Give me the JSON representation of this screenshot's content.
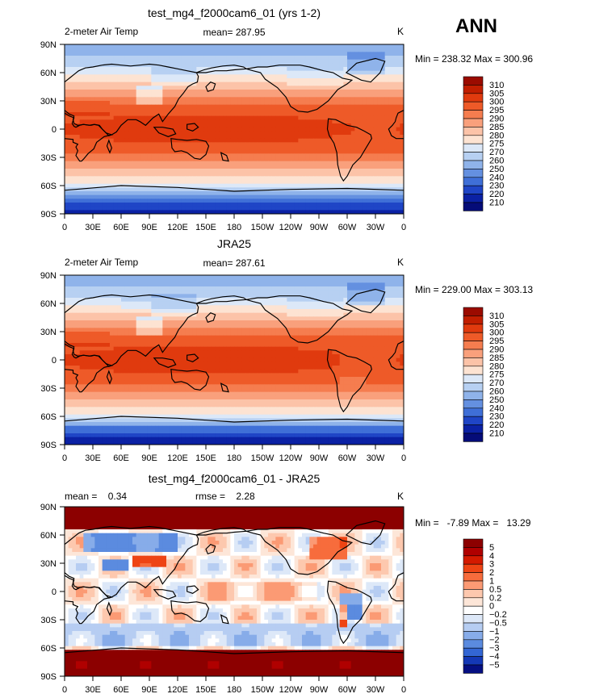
{
  "season": "ANN",
  "chart_data": [
    {
      "type": "heatmap",
      "title": "test_mg4_f2000cam6_01 (yrs 1-2)",
      "variable": "2-meter Air Temp",
      "units": "K",
      "stat_text": "mean= 287.95",
      "minmax_text": "Min = 238.32 Max = 300.96",
      "mean": 287.95,
      "min": 238.32,
      "max": 300.96,
      "x_ticks": [
        "0",
        "30E",
        "60E",
        "90E",
        "120E",
        "150E",
        "180",
        "150W",
        "120W",
        "90W",
        "60W",
        "30W",
        "0"
      ],
      "y_ticks": [
        "90N",
        "60N",
        "30N",
        "0",
        "30S",
        "60S",
        "90S"
      ],
      "colorbar_levels": [
        "310",
        "305",
        "300",
        "295",
        "290",
        "285",
        "280",
        "275",
        "270",
        "260",
        "250",
        "240",
        "230",
        "220",
        "210"
      ],
      "colorbar_colors": [
        "#9b0b00",
        "#c11e00",
        "#e03a0e",
        "#ee5a28",
        "#f57d4f",
        "#f9a07c",
        "#fcc3a8",
        "#fde3d2",
        "#dce8f8",
        "#b7d0f2",
        "#8fb3ea",
        "#6490e0",
        "#3f6fd7",
        "#1f45c6",
        "#0b21a4",
        "#050c78"
      ]
    },
    {
      "type": "heatmap",
      "title": "JRA25",
      "variable": "2-meter Air Temp",
      "units": "K",
      "stat_text": "mean= 287.61",
      "minmax_text": "Min = 229.00 Max = 303.13",
      "mean": 287.61,
      "min": 229.0,
      "max": 303.13,
      "x_ticks": [
        "0",
        "30E",
        "60E",
        "90E",
        "120E",
        "150E",
        "180",
        "150W",
        "120W",
        "90W",
        "60W",
        "30W",
        "0"
      ],
      "y_ticks": [
        "90N",
        "60N",
        "30N",
        "0",
        "30S",
        "60S",
        "90S"
      ],
      "colorbar_levels": [
        "310",
        "305",
        "300",
        "295",
        "290",
        "285",
        "280",
        "275",
        "270",
        "260",
        "250",
        "240",
        "230",
        "220",
        "210"
      ],
      "colorbar_colors": [
        "#9b0b00",
        "#c11e00",
        "#e03a0e",
        "#ee5a28",
        "#f57d4f",
        "#f9a07c",
        "#fcc3a8",
        "#fde3d2",
        "#dce8f8",
        "#b7d0f2",
        "#8fb3ea",
        "#6490e0",
        "#3f6fd7",
        "#1f45c6",
        "#0b21a4",
        "#050c78"
      ]
    },
    {
      "type": "heatmap",
      "title": "test_mg4_f2000cam6_01 - JRA25",
      "variable": "",
      "units": "K",
      "stat_text": "mean =    0.34",
      "stat_text2": "rmse =    2.28",
      "minmax_text": "Min =   -7.89 Max =   13.29",
      "mean": 0.34,
      "rmse": 2.28,
      "min": -7.89,
      "max": 13.29,
      "x_ticks": [
        "0",
        "30E",
        "60E",
        "90E",
        "120E",
        "150E",
        "180",
        "150W",
        "120W",
        "90W",
        "60W",
        "30W",
        "0"
      ],
      "y_ticks": [
        "90N",
        "60N",
        "30N",
        "0",
        "30S",
        "60S",
        "90S"
      ],
      "colorbar_levels": [
        "5",
        "4",
        "3",
        "2",
        "1",
        "0.5",
        "0.2",
        "0",
        "−0.2",
        "−0.5",
        "−1",
        "−2",
        "−3",
        "−4",
        "−5"
      ],
      "colorbar_colors": [
        "#8c0000",
        "#b00000",
        "#d41a00",
        "#ee4414",
        "#f76c3c",
        "#fb9a74",
        "#fdc8ae",
        "#fde6d8",
        "#ffffff",
        "#dde8f8",
        "#b6cdf2",
        "#87ace9",
        "#5b8bdf",
        "#3366d4",
        "#1438b6",
        "#050f82"
      ]
    }
  ]
}
